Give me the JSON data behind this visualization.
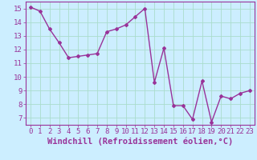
{
  "x": [
    0,
    1,
    2,
    3,
    4,
    5,
    6,
    7,
    8,
    9,
    10,
    11,
    12,
    13,
    14,
    15,
    16,
    17,
    18,
    19,
    20,
    21,
    22,
    23
  ],
  "y": [
    15.1,
    14.8,
    13.5,
    12.5,
    11.4,
    11.5,
    11.6,
    11.7,
    13.3,
    13.5,
    13.8,
    14.4,
    15.0,
    9.6,
    12.1,
    7.9,
    7.9,
    6.9,
    9.7,
    6.7,
    8.6,
    8.4,
    8.8,
    9.0
  ],
  "line_color": "#993399",
  "marker": "D",
  "marker_size": 2,
  "background_color": "#cceeff",
  "grid_color": "#aaddcc",
  "xlabel": "Windchill (Refroidissement éolien,°C)",
  "ylabel": "",
  "ylim": [
    6.5,
    15.5
  ],
  "xlim": [
    -0.5,
    23.5
  ],
  "yticks": [
    7,
    8,
    9,
    10,
    11,
    12,
    13,
    14,
    15
  ],
  "xticks": [
    0,
    1,
    2,
    3,
    4,
    5,
    6,
    7,
    8,
    9,
    10,
    11,
    12,
    13,
    14,
    15,
    16,
    17,
    18,
    19,
    20,
    21,
    22,
    23
  ],
  "tick_color": "#993399",
  "label_color": "#993399",
  "axis_color": "#993399",
  "xlabel_fontsize": 7.5,
  "tick_fontsize": 6.5,
  "line_width": 1.0
}
